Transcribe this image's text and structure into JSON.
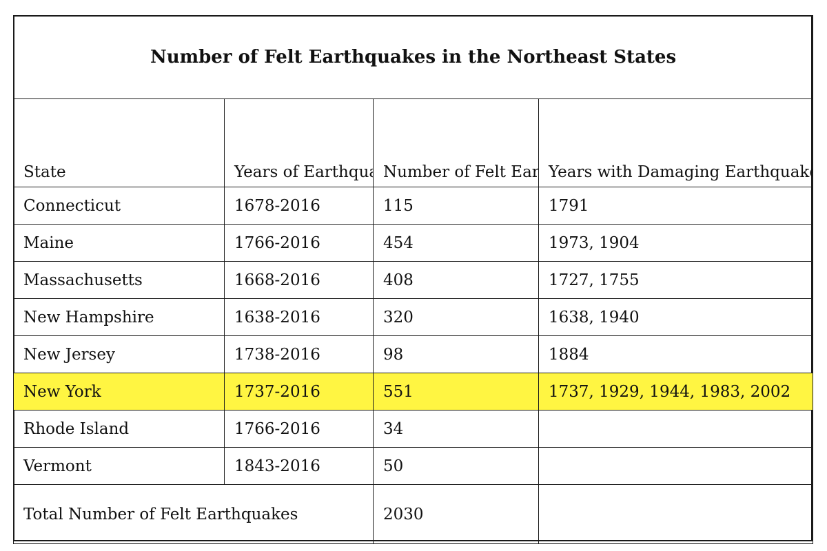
{
  "title": "Number of Felt Earthquakes in the Northeast States",
  "headers": {
    "state": "State",
    "years_record": "Years of Earthquake Record",
    "felt": "Number of Felt Earthquakes",
    "damaging": "Years with Damaging Earthquakes"
  },
  "rows": [
    {
      "state": "Connecticut",
      "years": "1678-2016",
      "felt": "115",
      "damaging": "1791",
      "highlighted": false
    },
    {
      "state": "Maine",
      "years": "1766-2016",
      "felt": "454",
      "damaging": "1973, 1904",
      "highlighted": false
    },
    {
      "state": "Massachusetts",
      "years": "1668-2016",
      "felt": "408",
      "damaging": "1727, 1755",
      "highlighted": false
    },
    {
      "state": "New Hampshire",
      "years": "1638-2016",
      "felt": "320",
      "damaging": "1638, 1940",
      "highlighted": false
    },
    {
      "state": "New Jersey",
      "years": "1738-2016",
      "felt": "98",
      "damaging": "1884",
      "highlighted": false
    },
    {
      "state": "New York",
      "years": "1737-2016",
      "felt": "551",
      "damaging": "1737, 1929, 1944, 1983, 2002",
      "highlighted": true
    },
    {
      "state": "Rhode Island",
      "years": "1766-2016",
      "felt": "34",
      "damaging": "",
      "highlighted": false
    },
    {
      "state": "Vermont",
      "years": "1843-2016",
      "felt": "50",
      "damaging": "",
      "highlighted": false
    }
  ],
  "total": {
    "label": "Total Number of Felt Earthquakes",
    "value": "2030"
  },
  "highlight_color": "#fff542"
}
